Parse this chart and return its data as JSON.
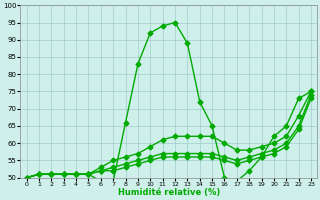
{
  "xlabel": "Humidité relative (%)",
  "ylabel": "",
  "xlim": [
    -0.5,
    23.5
  ],
  "ylim": [
    50,
    100
  ],
  "xticks": [
    0,
    1,
    2,
    3,
    4,
    5,
    6,
    7,
    8,
    9,
    10,
    11,
    12,
    13,
    14,
    15,
    16,
    17,
    18,
    19,
    20,
    21,
    22,
    23
  ],
  "yticks": [
    50,
    55,
    60,
    65,
    70,
    75,
    80,
    85,
    90,
    95,
    100
  ],
  "background_color": "#cff0ea",
  "line_color": "#00aa00",
  "grid_color": "#a0cccc",
  "curves": [
    [
      50,
      51,
      51,
      51,
      51,
      51,
      49,
      49,
      66,
      83,
      92,
      94,
      95,
      89,
      72,
      65,
      50,
      49,
      52,
      56,
      62,
      65,
      73,
      75
    ],
    [
      50,
      51,
      51,
      51,
      51,
      51,
      53,
      55,
      56,
      57,
      59,
      61,
      62,
      62,
      62,
      62,
      60,
      58,
      58,
      59,
      60,
      62,
      68,
      75
    ],
    [
      50,
      51,
      51,
      51,
      51,
      51,
      52,
      53,
      54,
      55,
      56,
      57,
      57,
      57,
      57,
      57,
      56,
      55,
      56,
      57,
      58,
      60,
      65,
      74
    ],
    [
      50,
      51,
      51,
      51,
      51,
      51,
      52,
      52,
      53,
      54,
      55,
      56,
      56,
      56,
      56,
      56,
      55,
      54,
      55,
      56,
      57,
      59,
      64,
      73
    ]
  ],
  "marker": "D",
  "marker_size": 2.5,
  "linewidth": 1.0
}
